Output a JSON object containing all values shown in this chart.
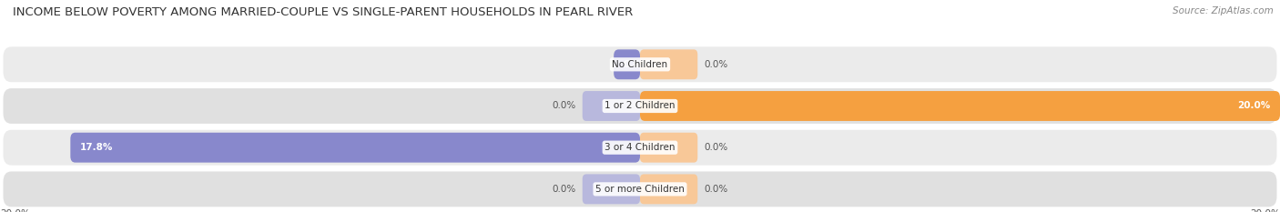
{
  "title": "INCOME BELOW POVERTY AMONG MARRIED-COUPLE VS SINGLE-PARENT HOUSEHOLDS IN PEARL RIVER",
  "source": "Source: ZipAtlas.com",
  "categories": [
    "No Children",
    "1 or 2 Children",
    "3 or 4 Children",
    "5 or more Children"
  ],
  "married_values": [
    0.82,
    0.0,
    17.8,
    0.0
  ],
  "single_values": [
    0.0,
    20.0,
    0.0,
    0.0
  ],
  "married_color": "#8888cc",
  "married_color_light": "#b8b8dd",
  "single_color": "#f5a040",
  "single_color_light": "#f8c898",
  "row_bg_colors": [
    "#ebebeb",
    "#e0e0e0",
    "#ebebeb",
    "#e0e0e0"
  ],
  "xlim": 20.0,
  "title_fontsize": 9.5,
  "source_fontsize": 7.5,
  "value_fontsize": 7.5,
  "cat_fontsize": 7.5,
  "legend_fontsize": 8,
  "figsize": [
    14.06,
    2.33
  ],
  "dpi": 100
}
